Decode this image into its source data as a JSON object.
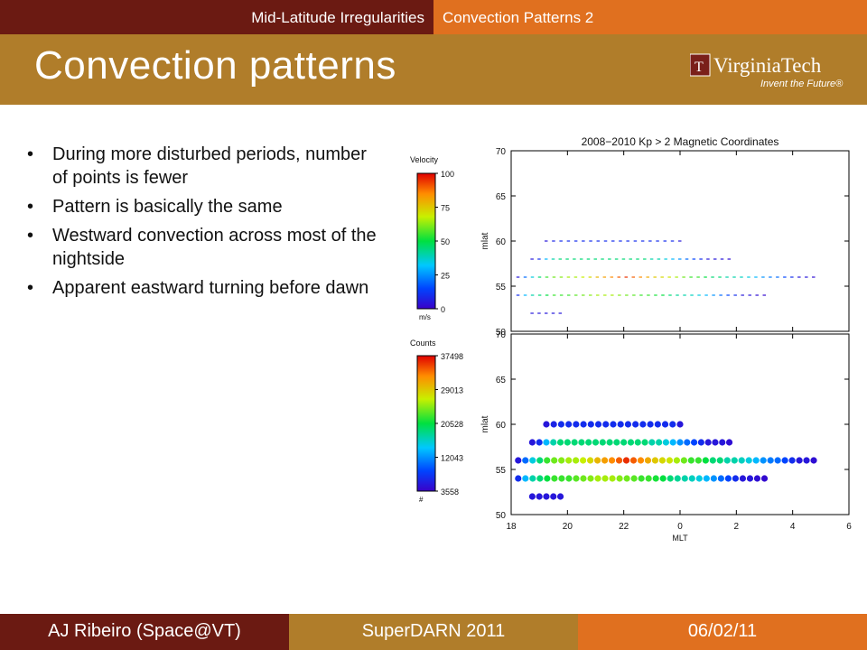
{
  "header": {
    "section_left": "Mid-Latitude Irregularities",
    "section_right": "Convection Patterns 2",
    "title": "Convection patterns",
    "logo_text": "VirginiaTech",
    "logo_tagline": "Invent the Future"
  },
  "bullets": [
    "During more disturbed periods, number of points is fewer",
    "Pattern is basically the same",
    "Westward convection across most of the nightside",
    "Apparent eastward turning before dawn"
  ],
  "footer": {
    "author": "AJ Ribeiro (Space@VT)",
    "event": "SuperDARN 2011",
    "date": "06/02/11"
  },
  "colors": {
    "maroon": "#6b1a12",
    "gold": "#b07d2a",
    "orange": "#e0701f"
  },
  "chart_data": {
    "type": "scatter",
    "title": "2008−2010 Kp > 2 Magnetic Coordinates",
    "xlabel": "MLT",
    "ylabel": "mlat",
    "x_ticks": [
      "18",
      "20",
      "22",
      "0",
      "2",
      "4",
      "6"
    ],
    "y_ticks": [
      "50",
      "55",
      "60",
      "65",
      "70"
    ],
    "xlim": [
      18,
      30
    ],
    "ylim": [
      50,
      70
    ],
    "velocity_colorbar": {
      "title": "Velocity",
      "unit": "m/s",
      "ticks": [
        "100",
        "75",
        "50",
        "25",
        "0"
      ]
    },
    "counts_colorbar": {
      "title": "Counts",
      "unit": "#",
      "ticks": [
        "37498",
        "29013",
        "20528",
        "12043",
        "3558"
      ]
    },
    "rows": [
      {
        "mlat": 60,
        "mlt_start": 19.25,
        "mlt_end": 24.0,
        "count_profile": [
          0.05,
          0.08,
          0.1,
          0.1,
          0.1,
          0.1,
          0.1,
          0.1,
          0.1,
          0.1,
          0.1,
          0.1,
          0.1,
          0.1,
          0.1,
          0.1,
          0.1,
          0.1,
          0.05
        ]
      },
      {
        "mlat": 58,
        "mlt_start": 18.75,
        "mlt_end": 25.75,
        "count_profile": [
          0.05,
          0.1,
          0.3,
          0.4,
          0.45,
          0.45,
          0.45,
          0.45,
          0.45,
          0.45,
          0.45,
          0.45,
          0.45,
          0.45,
          0.45,
          0.45,
          0.45,
          0.4,
          0.4,
          0.35,
          0.3,
          0.25,
          0.2,
          0.15,
          0.1,
          0.05,
          0.05,
          0.05,
          0.03
        ]
      },
      {
        "mlat": 56,
        "mlt_start": 18.25,
        "mlt_end": 28.75,
        "count_profile": [
          0.05,
          0.2,
          0.35,
          0.45,
          0.55,
          0.6,
          0.62,
          0.65,
          0.65,
          0.68,
          0.72,
          0.78,
          0.82,
          0.85,
          0.9,
          0.95,
          0.9,
          0.85,
          0.8,
          0.75,
          0.72,
          0.7,
          0.65,
          0.6,
          0.55,
          0.55,
          0.5,
          0.45,
          0.45,
          0.4,
          0.4,
          0.38,
          0.35,
          0.3,
          0.25,
          0.22,
          0.2,
          0.15,
          0.1,
          0.05,
          0.05,
          0.03
        ]
      },
      {
        "mlat": 54,
        "mlt_start": 18.25,
        "mlt_end": 27.0,
        "count_profile": [
          0.1,
          0.3,
          0.4,
          0.45,
          0.5,
          0.55,
          0.55,
          0.55,
          0.58,
          0.6,
          0.62,
          0.65,
          0.65,
          0.65,
          0.62,
          0.6,
          0.58,
          0.55,
          0.55,
          0.52,
          0.5,
          0.45,
          0.42,
          0.4,
          0.38,
          0.35,
          0.3,
          0.25,
          0.2,
          0.15,
          0.1,
          0.05,
          0.05,
          0.03,
          0.02
        ]
      },
      {
        "mlat": 52,
        "mlt_start": 18.75,
        "mlt_end": 19.75,
        "count_profile": [
          0.05,
          0.05,
          0.05,
          0.05,
          0.05
        ]
      }
    ]
  }
}
